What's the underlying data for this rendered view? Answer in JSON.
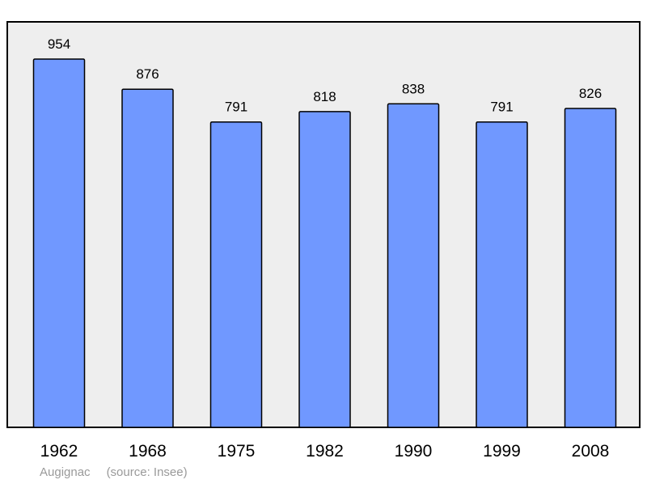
{
  "chart_data": {
    "type": "bar",
    "categories": [
      "1962",
      "1968",
      "1975",
      "1982",
      "1990",
      "1999",
      "2008"
    ],
    "values": [
      954,
      876,
      791,
      818,
      838,
      791,
      826
    ],
    "data_labels": [
      "954",
      "876",
      "791",
      "818",
      "838",
      "791",
      "826"
    ],
    "title": "",
    "xlabel": "",
    "ylabel": "",
    "ylim": [
      0,
      954
    ],
    "grid": false,
    "legend": "none",
    "bar_color": "#7098ff",
    "plot_background": "#eeeeee"
  },
  "caption": {
    "place": "Augignac",
    "source": "(source: Insee)"
  }
}
